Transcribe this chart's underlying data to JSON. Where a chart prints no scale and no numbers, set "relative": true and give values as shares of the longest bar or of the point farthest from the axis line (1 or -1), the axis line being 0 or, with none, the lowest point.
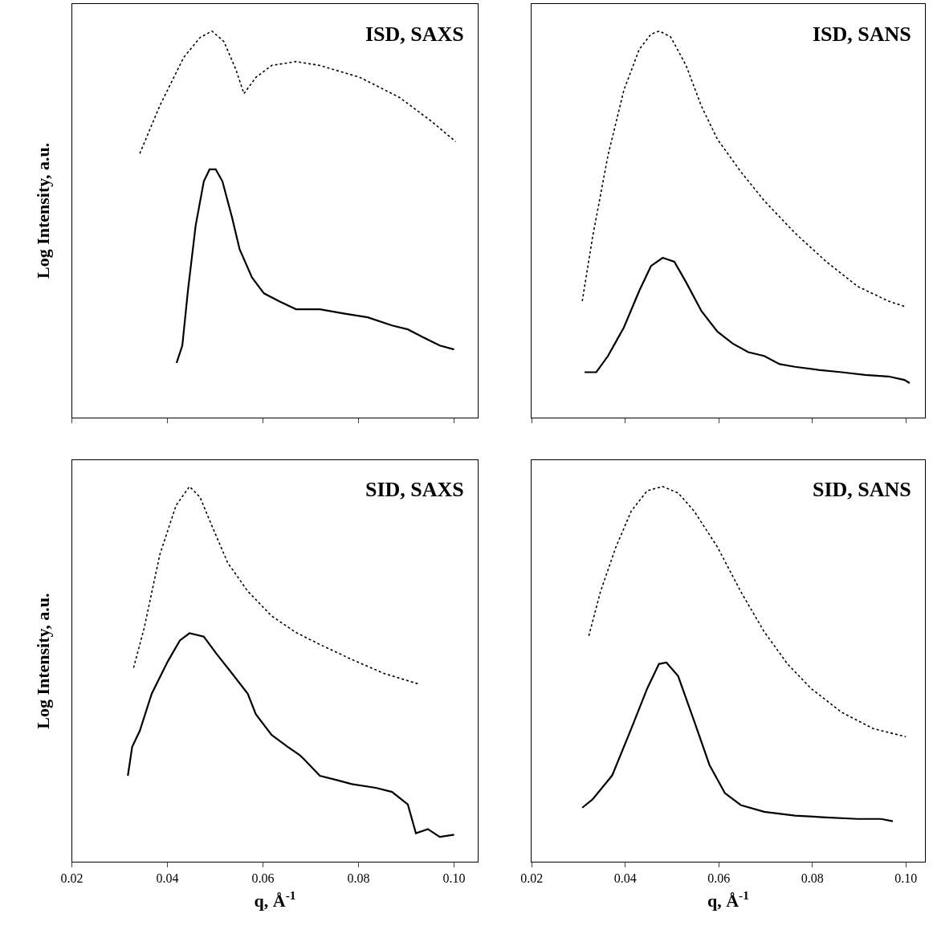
{
  "chart_data": [
    {
      "type": "line",
      "title": "ISD, SAXS",
      "ylabel": "Log Intensity, a.u.",
      "relative": true,
      "xlim": [
        0.02,
        0.105
      ],
      "xticks": [
        {
          "value": 0.02,
          "label": null
        },
        {
          "value": 0.04,
          "label": null
        },
        {
          "value": 0.06,
          "label": null
        },
        {
          "value": 0.08,
          "label": null
        },
        {
          "value": 0.1,
          "label": null
        }
      ],
      "tick_labels": false,
      "series": [
        {
          "color": "#000000",
          "line_style": "dotted",
          "x": [
            0.0342,
            0.0384,
            0.0434,
            0.0468,
            0.0493,
            0.0518,
            0.0543,
            0.056,
            0.0585,
            0.0618,
            0.0669,
            0.0719,
            0.0803,
            0.0886,
            0.0953,
            0.1003
          ],
          "values": [
            0.683,
            0.807,
            0.932,
            0.983,
            1.0,
            0.973,
            0.901,
            0.838,
            0.88,
            0.911,
            0.921,
            0.911,
            0.88,
            0.828,
            0.766,
            0.714
          ]
        },
        {
          "color": "#000000",
          "line_style": "solid",
          "x": [
            0.0419,
            0.0431,
            0.0443,
            0.0459,
            0.0476,
            0.0488,
            0.0501,
            0.0515,
            0.0535,
            0.0551,
            0.0577,
            0.0602,
            0.0635,
            0.0669,
            0.0719,
            0.0769,
            0.0819,
            0.087,
            0.0903,
            0.0936,
            0.097,
            0.1
          ],
          "values": [
            0.141,
            0.186,
            0.331,
            0.497,
            0.611,
            0.642,
            0.642,
            0.611,
            0.518,
            0.435,
            0.362,
            0.321,
            0.3,
            0.28,
            0.28,
            0.269,
            0.259,
            0.238,
            0.228,
            0.207,
            0.186,
            0.176
          ]
        }
      ]
    },
    {
      "type": "line",
      "title": "ISD, SANS",
      "relative": true,
      "xlim": [
        0.02,
        0.104
      ],
      "xticks": [
        {
          "value": 0.02,
          "label": null
        },
        {
          "value": 0.04,
          "label": null
        },
        {
          "value": 0.06,
          "label": null
        },
        {
          "value": 0.08,
          "label": null
        },
        {
          "value": 0.1,
          "label": null
        }
      ],
      "tick_labels": false,
      "series": [
        {
          "color": "#000000",
          "line_style": "dotted",
          "x": [
            0.0308,
            0.033,
            0.0363,
            0.0397,
            0.043,
            0.0455,
            0.0473,
            0.0497,
            0.053,
            0.0563,
            0.0597,
            0.0647,
            0.0697,
            0.0763,
            0.083,
            0.0897,
            0.0963,
            0.1
          ],
          "values": [
            0.301,
            0.466,
            0.678,
            0.847,
            0.953,
            0.992,
            1.0,
            0.985,
            0.911,
            0.805,
            0.72,
            0.636,
            0.561,
            0.477,
            0.403,
            0.339,
            0.301,
            0.286
          ]
        },
        {
          "color": "#000000",
          "line_style": "solid",
          "x": [
            0.0313,
            0.0338,
            0.0363,
            0.0397,
            0.043,
            0.0455,
            0.048,
            0.0505,
            0.053,
            0.0563,
            0.0597,
            0.063,
            0.0663,
            0.0697,
            0.073,
            0.0763,
            0.0813,
            0.0863,
            0.0913,
            0.0963,
            0.0997,
            0.1008
          ],
          "values": [
            0.117,
            0.117,
            0.159,
            0.233,
            0.328,
            0.392,
            0.413,
            0.403,
            0.35,
            0.275,
            0.222,
            0.191,
            0.169,
            0.159,
            0.138,
            0.131,
            0.123,
            0.117,
            0.11,
            0.106,
            0.097,
            0.089
          ]
        }
      ]
    },
    {
      "type": "line",
      "title": "SID, SAXS",
      "ylabel": "Log Intensity, a.u.",
      "xlabel": "q, Å$^{-1}$",
      "relative": true,
      "xlim": [
        0.02,
        0.105
      ],
      "xticks": [
        0.02,
        0.04,
        0.06,
        0.08,
        {
          "value": 0.1,
          "label": "0.10"
        }
      ],
      "tick_labels": "x",
      "series": [
        {
          "color": "#000000",
          "line_style": "dotted",
          "x": [
            0.0329,
            0.0351,
            0.0384,
            0.0418,
            0.0446,
            0.0468,
            0.0493,
            0.0526,
            0.0568,
            0.0618,
            0.0669,
            0.0719,
            0.0786,
            0.0853,
            0.0925
          ],
          "values": [
            0.517,
            0.622,
            0.819,
            0.95,
            1.0,
            0.972,
            0.895,
            0.797,
            0.721,
            0.655,
            0.611,
            0.579,
            0.539,
            0.502,
            0.474
          ]
        },
        {
          "color": "#000000",
          "line_style": "solid",
          "x": [
            0.0317,
            0.0326,
            0.0342,
            0.0367,
            0.0401,
            0.0426,
            0.0446,
            0.0476,
            0.0501,
            0.0535,
            0.0568,
            0.0585,
            0.0618,
            0.0652,
            0.0677,
            0.0686,
            0.0719,
            0.0753,
            0.0786,
            0.0836,
            0.087,
            0.0903,
            0.092,
            0.0945,
            0.097,
            0.1
          ],
          "values": [
            0.229,
            0.306,
            0.349,
            0.448,
            0.535,
            0.59,
            0.609,
            0.6,
            0.557,
            0.502,
            0.448,
            0.393,
            0.338,
            0.306,
            0.284,
            0.273,
            0.229,
            0.218,
            0.207,
            0.197,
            0.186,
            0.153,
            0.076,
            0.087,
            0.066,
            0.072
          ]
        }
      ]
    },
    {
      "type": "line",
      "title": "SID, SANS",
      "xlabel": "q, Å$^{-1}$",
      "relative": true,
      "xlim": [
        0.02,
        0.104
      ],
      "xticks": [
        0.02,
        0.04,
        0.06,
        0.08,
        {
          "value": 0.1,
          "label": "0.10"
        }
      ],
      "tick_labels": "x",
      "series": [
        {
          "color": "#000000",
          "line_style": "dotted",
          "x": [
            0.0322,
            0.0347,
            0.038,
            0.0413,
            0.0447,
            0.048,
            0.0513,
            0.0547,
            0.0597,
            0.0647,
            0.0697,
            0.0747,
            0.0797,
            0.0863,
            0.093,
            0.1
          ],
          "values": [
            0.602,
            0.72,
            0.839,
            0.935,
            0.989,
            1.0,
            0.983,
            0.935,
            0.839,
            0.72,
            0.613,
            0.527,
            0.462,
            0.398,
            0.355,
            0.333
          ]
        },
        {
          "color": "#000000",
          "line_style": "solid",
          "x": [
            0.0308,
            0.033,
            0.0372,
            0.0413,
            0.0447,
            0.0472,
            0.0488,
            0.0513,
            0.0547,
            0.058,
            0.0613,
            0.0647,
            0.0697,
            0.0763,
            0.083,
            0.0897,
            0.0947,
            0.0972
          ],
          "values": [
            0.144,
            0.166,
            0.23,
            0.355,
            0.462,
            0.527,
            0.531,
            0.495,
            0.376,
            0.258,
            0.183,
            0.151,
            0.133,
            0.123,
            0.118,
            0.114,
            0.114,
            0.108
          ]
        }
      ]
    }
  ]
}
